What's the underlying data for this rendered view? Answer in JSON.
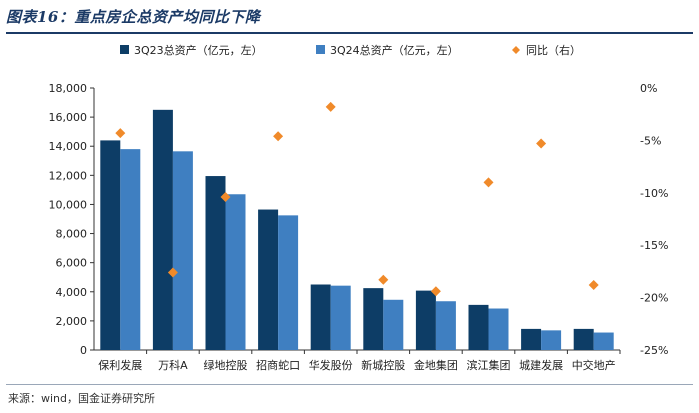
{
  "title": "图表16：重点房企总资产均同比下降",
  "source": "来源：wind，国金证券研究所",
  "colors": {
    "series1": "#0d3d66",
    "series2": "#3f7fc1",
    "series3": "#f08a2a"
  },
  "chart_data": {
    "type": "bar",
    "categories": [
      "保利发展",
      "万科A",
      "绿地控股",
      "招商蛇口",
      "华发股份",
      "新城控股",
      "金地集团",
      "滨江集团",
      "城建发展",
      "中交地产"
    ],
    "series": [
      {
        "name": "3Q23总资产（亿元，左）",
        "type": "bar",
        "axis": "left",
        "values": [
          14400,
          16500,
          11950,
          9650,
          4500,
          4250,
          4080,
          3100,
          1450,
          1450
        ]
      },
      {
        "name": "3Q24总资产（亿元，左）",
        "type": "bar",
        "axis": "left",
        "values": [
          13800,
          13650,
          10700,
          9250,
          4420,
          3450,
          3350,
          2850,
          1350,
          1200
        ]
      },
      {
        "name": "同比（右）",
        "type": "scatter",
        "axis": "right",
        "values": [
          -4.3,
          -17.6,
          -10.4,
          -4.6,
          -1.8,
          -18.3,
          -19.4,
          -9.0,
          -5.3,
          -18.8
        ]
      }
    ],
    "y_left": {
      "lim": [
        0,
        18000
      ],
      "ticks": [
        "0",
        "2,000",
        "4,000",
        "6,000",
        "8,000",
        "10,000",
        "12,000",
        "14,000",
        "16,000",
        "18,000"
      ]
    },
    "y_right": {
      "lim": [
        -25,
        0
      ],
      "ticks": [
        "0%",
        "-5%",
        "-10%",
        "-15%",
        "-20%",
        "-25%"
      ]
    },
    "legend_position": "top",
    "grid": false
  }
}
